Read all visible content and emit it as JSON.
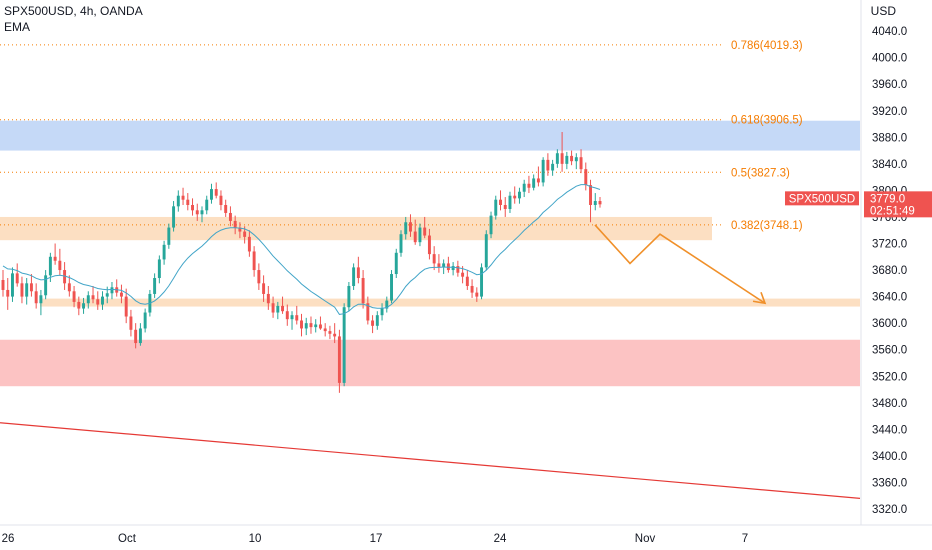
{
  "header": {
    "symbol": "SPX500USD, 4h, OANDA",
    "indicator": "EMA"
  },
  "axis": {
    "currency": "USD"
  },
  "price_tag": {
    "symbol": "SPX500USD",
    "price": "3779.0",
    "countdown": "02:51:49",
    "color": "#ef5350"
  },
  "chart_data": {
    "type": "candlestick",
    "ylim": [
      3300,
      4060
    ],
    "y_ticks": [
      "4040.0",
      "4000.0",
      "3960.0",
      "3920.0",
      "3880.0",
      "3840.0",
      "3800.0",
      "3760.0",
      "3720.0",
      "3680.0",
      "3640.0",
      "3600.0",
      "3560.0",
      "3520.0",
      "3480.0",
      "3440.0",
      "3400.0",
      "3360.0",
      "3320.0"
    ],
    "x_ticks": [
      "26",
      "Oct",
      "10",
      "17",
      "24",
      "Nov",
      "7"
    ],
    "fib_levels": [
      {
        "label": "0.786(4019.3)",
        "value": 4019.3
      },
      {
        "label": "0.618(3906.5)",
        "value": 3906.5
      },
      {
        "label": "0.5(3827.3)",
        "value": 3827.3
      },
      {
        "label": "0.382(3748.1)",
        "value": 3748.1
      }
    ],
    "zones": [
      {
        "name": "resistance",
        "from": 3860,
        "to": 3905,
        "color": "#bbd2f6"
      },
      {
        "name": "support-upper",
        "from": 3725,
        "to": 3760,
        "color": "#fbd9b7"
      },
      {
        "name": "support-lower",
        "from": 3625,
        "to": 3637,
        "color": "#fbd9b7"
      },
      {
        "name": "demand",
        "from": 3505,
        "to": 3575,
        "color": "#fcb8b8"
      }
    ],
    "colors": {
      "up": "#26a69a",
      "down": "#ef5350",
      "ema": "#42a5c8",
      "fib": "#f57c00",
      "projection": "#f0902a",
      "trendline": "#e53935"
    },
    "ema_period": 20,
    "candles": [
      [
        3665,
        3680,
        3640,
        3650
      ],
      [
        3650,
        3668,
        3620,
        3640
      ],
      [
        3640,
        3684,
        3632,
        3675
      ],
      [
        3675,
        3690,
        3655,
        3660
      ],
      [
        3660,
        3670,
        3630,
        3640
      ],
      [
        3640,
        3668,
        3628,
        3660
      ],
      [
        3660,
        3674,
        3640,
        3648
      ],
      [
        3648,
        3660,
        3622,
        3630
      ],
      [
        3630,
        3650,
        3612,
        3642
      ],
      [
        3642,
        3680,
        3636,
        3672
      ],
      [
        3672,
        3706,
        3662,
        3700
      ],
      [
        3700,
        3720,
        3688,
        3694
      ],
      [
        3694,
        3712,
        3672,
        3680
      ],
      [
        3680,
        3692,
        3650,
        3660
      ],
      [
        3660,
        3672,
        3640,
        3648
      ],
      [
        3648,
        3656,
        3624,
        3632
      ],
      [
        3632,
        3640,
        3612,
        3622
      ],
      [
        3622,
        3638,
        3614,
        3630
      ],
      [
        3630,
        3648,
        3622,
        3642
      ],
      [
        3642,
        3656,
        3630,
        3636
      ],
      [
        3636,
        3648,
        3620,
        3628
      ],
      [
        3628,
        3648,
        3620,
        3640
      ],
      [
        3640,
        3655,
        3630,
        3645
      ],
      [
        3645,
        3662,
        3636,
        3654
      ],
      [
        3654,
        3666,
        3640,
        3646
      ],
      [
        3646,
        3658,
        3630,
        3640
      ],
      [
        3640,
        3652,
        3600,
        3610
      ],
      [
        3610,
        3620,
        3580,
        3590
      ],
      [
        3590,
        3600,
        3562,
        3570
      ],
      [
        3570,
        3600,
        3566,
        3592
      ],
      [
        3592,
        3622,
        3586,
        3616
      ],
      [
        3616,
        3650,
        3610,
        3644
      ],
      [
        3644,
        3675,
        3638,
        3668
      ],
      [
        3668,
        3702,
        3660,
        3696
      ],
      [
        3696,
        3724,
        3688,
        3718
      ],
      [
        3718,
        3750,
        3712,
        3744
      ],
      [
        3744,
        3784,
        3738,
        3776
      ],
      [
        3776,
        3800,
        3768,
        3792
      ],
      [
        3792,
        3804,
        3778,
        3786
      ],
      [
        3786,
        3796,
        3770,
        3778
      ],
      [
        3778,
        3788,
        3762,
        3770
      ],
      [
        3770,
        3780,
        3754,
        3764
      ],
      [
        3764,
        3776,
        3752,
        3770
      ],
      [
        3770,
        3792,
        3764,
        3786
      ],
      [
        3786,
        3810,
        3780,
        3802
      ],
      [
        3802,
        3812,
        3788,
        3792
      ],
      [
        3792,
        3800,
        3770,
        3778
      ],
      [
        3778,
        3786,
        3760,
        3766
      ],
      [
        3766,
        3776,
        3746,
        3754
      ],
      [
        3754,
        3762,
        3734,
        3744
      ],
      [
        3744,
        3752,
        3728,
        3738
      ],
      [
        3738,
        3746,
        3720,
        3730
      ],
      [
        3730,
        3740,
        3700,
        3708
      ],
      [
        3708,
        3716,
        3670,
        3680
      ],
      [
        3680,
        3690,
        3650,
        3660
      ],
      [
        3660,
        3672,
        3632,
        3644
      ],
      [
        3644,
        3656,
        3620,
        3630
      ],
      [
        3630,
        3640,
        3608,
        3616
      ],
      [
        3616,
        3632,
        3606,
        3626
      ],
      [
        3626,
        3640,
        3614,
        3618
      ],
      [
        3618,
        3628,
        3596,
        3606
      ],
      [
        3606,
        3618,
        3590,
        3612
      ],
      [
        3612,
        3626,
        3598,
        3604
      ],
      [
        3604,
        3614,
        3580,
        3592
      ],
      [
        3592,
        3608,
        3582,
        3600
      ],
      [
        3600,
        3610,
        3584,
        3594
      ],
      [
        3594,
        3606,
        3586,
        3598
      ],
      [
        3598,
        3610,
        3590,
        3592
      ],
      [
        3592,
        3600,
        3580,
        3588
      ],
      [
        3588,
        3596,
        3576,
        3584
      ],
      [
        3584,
        3600,
        3570,
        3580
      ],
      [
        3580,
        3590,
        3495,
        3510
      ],
      [
        3510,
        3630,
        3505,
        3624
      ],
      [
        3624,
        3662,
        3618,
        3656
      ],
      [
        3656,
        3690,
        3650,
        3684
      ],
      [
        3684,
        3700,
        3660,
        3668
      ],
      [
        3668,
        3680,
        3622,
        3630
      ],
      [
        3630,
        3640,
        3598,
        3604
      ],
      [
        3604,
        3612,
        3585,
        3596
      ],
      [
        3596,
        3618,
        3590,
        3612
      ],
      [
        3612,
        3630,
        3604,
        3622
      ],
      [
        3622,
        3640,
        3616,
        3634
      ],
      [
        3634,
        3680,
        3630,
        3674
      ],
      [
        3674,
        3712,
        3668,
        3706
      ],
      [
        3706,
        3740,
        3700,
        3734
      ],
      [
        3734,
        3760,
        3726,
        3752
      ],
      [
        3752,
        3764,
        3730,
        3738
      ],
      [
        3738,
        3756,
        3718,
        3722
      ],
      [
        3722,
        3750,
        3716,
        3744
      ],
      [
        3744,
        3760,
        3728,
        3732
      ],
      [
        3732,
        3742,
        3696,
        3704
      ],
      [
        3704,
        3716,
        3680,
        3690
      ],
      [
        3690,
        3704,
        3676,
        3684
      ],
      [
        3684,
        3696,
        3674,
        3690
      ],
      [
        3690,
        3700,
        3676,
        3680
      ],
      [
        3680,
        3692,
        3672,
        3686
      ],
      [
        3686,
        3694,
        3670,
        3676
      ],
      [
        3676,
        3686,
        3660,
        3670
      ],
      [
        3670,
        3680,
        3650,
        3656
      ],
      [
        3656,
        3666,
        3638,
        3646
      ],
      [
        3646,
        3654,
        3632,
        3640
      ],
      [
        3640,
        3690,
        3636,
        3684
      ],
      [
        3684,
        3740,
        3680,
        3734
      ],
      [
        3734,
        3768,
        3728,
        3762
      ],
      [
        3762,
        3792,
        3756,
        3786
      ],
      [
        3786,
        3800,
        3770,
        3778
      ],
      [
        3778,
        3790,
        3760,
        3772
      ],
      [
        3772,
        3798,
        3766,
        3792
      ],
      [
        3792,
        3806,
        3780,
        3788
      ],
      [
        3788,
        3804,
        3780,
        3798
      ],
      [
        3798,
        3816,
        3790,
        3810
      ],
      [
        3810,
        3822,
        3796,
        3804
      ],
      [
        3804,
        3824,
        3800,
        3818
      ],
      [
        3818,
        3836,
        3806,
        3812
      ],
      [
        3812,
        3850,
        3806,
        3846
      ],
      [
        3846,
        3856,
        3822,
        3830
      ],
      [
        3830,
        3846,
        3822,
        3840
      ],
      [
        3840,
        3862,
        3834,
        3856
      ],
      [
        3856,
        3888,
        3828,
        3840
      ],
      [
        3840,
        3858,
        3832,
        3852
      ],
      [
        3852,
        3860,
        3838,
        3844
      ],
      [
        3844,
        3856,
        3832,
        3850
      ],
      [
        3850,
        3862,
        3826,
        3832
      ],
      [
        3832,
        3842,
        3800,
        3808
      ],
      [
        3808,
        3816,
        3752,
        3778
      ],
      [
        3778,
        3796,
        3770,
        3784
      ],
      [
        3784,
        3790,
        3774,
        3779
      ]
    ],
    "projection": [
      [
        3748,
        3690
      ],
      [
        3734,
        3680
      ],
      [
        3730,
        3630
      ]
    ],
    "trendline": [
      [
        3450,
        3336
      ]
    ]
  }
}
